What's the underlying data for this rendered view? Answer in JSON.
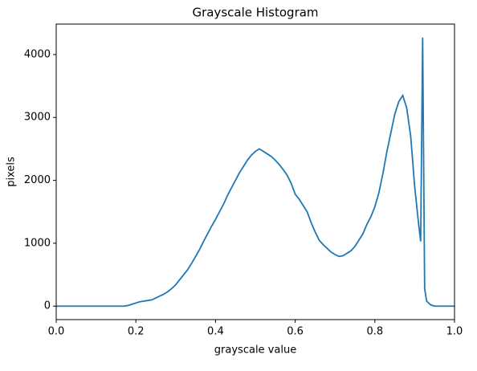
{
  "chart_data": {
    "type": "line",
    "title": "Grayscale Histogram",
    "x_label": "grayscale value",
    "y_label": "pixels",
    "x": [
      0,
      0.01,
      0.02,
      0.03,
      0.04,
      0.05,
      0.06,
      0.07,
      0.08,
      0.09,
      0.1,
      0.11,
      0.12,
      0.13,
      0.14,
      0.15,
      0.16,
      0.17,
      0.18,
      0.19,
      0.2,
      0.21,
      0.22,
      0.23,
      0.24,
      0.25,
      0.26,
      0.27,
      0.28,
      0.29,
      0.3,
      0.31,
      0.32,
      0.33,
      0.34,
      0.35,
      0.36,
      0.37,
      0.38,
      0.39,
      0.4,
      0.41,
      0.42,
      0.43,
      0.44,
      0.45,
      0.46,
      0.47,
      0.48,
      0.49,
      0.5,
      0.51,
      0.52,
      0.53,
      0.54,
      0.55,
      0.56,
      0.57,
      0.58,
      0.59,
      0.6,
      0.61,
      0.62,
      0.63,
      0.64,
      0.65,
      0.66,
      0.67,
      0.68,
      0.69,
      0.7,
      0.71,
      0.72,
      0.73,
      0.74,
      0.75,
      0.76,
      0.77,
      0.78,
      0.79,
      0.8,
      0.81,
      0.82,
      0.83,
      0.84,
      0.85,
      0.86,
      0.87,
      0.88,
      0.89,
      0.9,
      0.91,
      0.915,
      0.92,
      0.925,
      0.93,
      0.94,
      0.95,
      0.96,
      0.97,
      0.98,
      0.99,
      1.0
    ],
    "values": [
      0,
      0,
      0,
      0,
      0,
      0,
      0,
      0,
      0,
      0,
      0,
      0,
      0,
      0,
      0,
      0,
      0,
      0,
      10,
      30,
      50,
      70,
      80,
      90,
      100,
      130,
      160,
      190,
      230,
      280,
      340,
      420,
      500,
      580,
      680,
      790,
      900,
      1030,
      1150,
      1270,
      1380,
      1500,
      1620,
      1760,
      1880,
      2000,
      2120,
      2220,
      2320,
      2400,
      2460,
      2500,
      2460,
      2420,
      2380,
      2320,
      2250,
      2170,
      2080,
      1950,
      1780,
      1700,
      1600,
      1500,
      1330,
      1180,
      1050,
      980,
      920,
      860,
      820,
      790,
      800,
      840,
      880,
      950,
      1050,
      1150,
      1300,
      1420,
      1580,
      1800,
      2100,
      2450,
      2750,
      3050,
      3250,
      3350,
      3150,
      2700,
      1900,
      1300,
      1030,
      4270,
      280,
      80,
      20,
      0,
      0,
      0,
      0,
      0,
      0
    ],
    "color": "#1f77b4",
    "xlim": [
      0,
      1
    ],
    "xticks": [
      {
        "value": 0,
        "label": "0.0"
      },
      0.2,
      0.4,
      0.6,
      0.8,
      {
        "value": 1,
        "label": "1.0"
      }
    ],
    "ylim": [
      -214,
      4484
    ],
    "yticks": [
      0,
      1000,
      2000,
      3000,
      4000
    ]
  }
}
